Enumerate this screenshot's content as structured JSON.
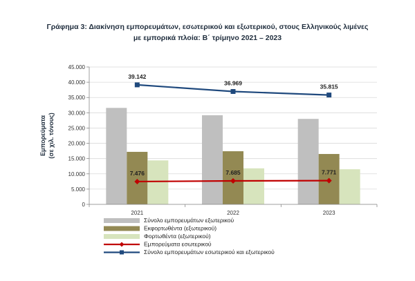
{
  "title_line1": "Γράφημα 3: Διακίνηση εμπορευμάτων, εσωτερικού και εξωτερικού, στους Ελληνικούς λιμένες",
  "title_line2": "με εμπορικά πλοία: Β΄ τρίμηνο 2021 – 2023",
  "chart_data": {
    "type": "bar",
    "categories": [
      "2021",
      "2022",
      "2023"
    ],
    "ylabel_line1": "Εμπορεύματα",
    "ylabel_line2": "(σε χιλ. τόνους)",
    "ylim": [
      0,
      45000
    ],
    "yticks": [
      0,
      5000,
      10000,
      15000,
      20000,
      25000,
      30000,
      35000,
      40000,
      45000
    ],
    "ytick_labels": [
      "0",
      "5.000",
      "10.000",
      "15.000",
      "20.000",
      "25.000",
      "30.000",
      "35.000",
      "40.000",
      "45.000"
    ],
    "grid": true,
    "legend_position": "bottom",
    "bar_series": [
      {
        "name": "Σύνολο εμπορευμάτων εξωτερικού",
        "values": [
          31600,
          29200,
          28000
        ],
        "color": "#bfbfbf"
      },
      {
        "name": "Εκφορτωθέντα (εξωτερικού)",
        "values": [
          17200,
          17400,
          16500
        ],
        "color": "#938953"
      },
      {
        "name": "Φορτωθέντα (εξωτερικού)",
        "values": [
          14400,
          11800,
          11500
        ],
        "color": "#d7e4bd"
      }
    ],
    "line_series": [
      {
        "name": "Εμπορεύματα εσωτερικού",
        "values": [
          7476,
          7685,
          7771
        ],
        "labels": [
          "7.476",
          "7.685",
          "7.771"
        ],
        "color": "#c00000",
        "marker": "diamond"
      },
      {
        "name": "Σύνολο εμπορευμάτων εσωτερικού και εξωτερικού",
        "values": [
          39142,
          36969,
          35815
        ],
        "labels": [
          "39.142",
          "36.969",
          "35.815"
        ],
        "color": "#1f497d",
        "marker": "square"
      }
    ]
  }
}
